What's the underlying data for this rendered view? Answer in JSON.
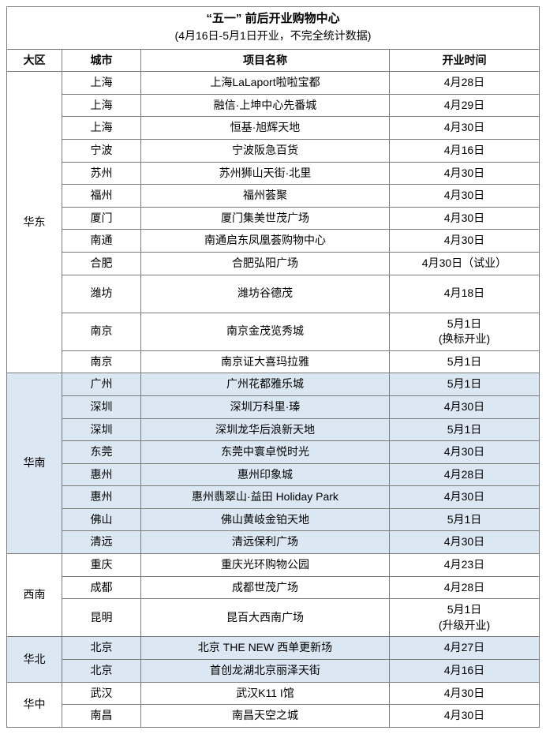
{
  "title": "“五一” 前后开业购物中心",
  "subtitle": "(4月16日-5月1日开业，不完全统计数据)",
  "headers": {
    "region": "大区",
    "city": "城市",
    "project": "项目名称",
    "date": "开业时间"
  },
  "colors": {
    "shaded_bg": "#dbe7f2",
    "border": "#7a7a7a"
  },
  "regions": [
    {
      "name": "华东",
      "shaded": false,
      "rows": [
        {
          "city": "上海",
          "project": "上海LaLaport啦啦宝都",
          "date": "4月28日"
        },
        {
          "city": "上海",
          "project": "融信·上坤中心先番城",
          "date": "4月29日"
        },
        {
          "city": "上海",
          "project": "恒基·旭辉天地",
          "date": "4月30日"
        },
        {
          "city": "宁波",
          "project": "宁波阪急百货",
          "date": "4月16日"
        },
        {
          "city": "苏州",
          "project": "苏州狮山天街·北里",
          "date": "4月30日"
        },
        {
          "city": "福州",
          "project": "福州荟聚",
          "date": "4月30日"
        },
        {
          "city": "厦门",
          "project": "厦门集美世茂广场",
          "date": "4月30日"
        },
        {
          "city": "南通",
          "project": "南通启东凤凰荟购物中心",
          "date": "4月30日"
        },
        {
          "city": "合肥",
          "project": "合肥弘阳广场",
          "date": "4月30日（试业）"
        },
        {
          "city": "潍坊",
          "project": "潍坊谷德茂",
          "date": "4月18日",
          "tall": true
        },
        {
          "city": "南京",
          "project": "南京金茂览秀城",
          "date": "5月1日\n(换标开业)",
          "tall": true
        },
        {
          "city": "南京",
          "project": "南京证大喜玛拉雅",
          "date": "5月1日"
        }
      ]
    },
    {
      "name": "华南",
      "shaded": true,
      "rows": [
        {
          "city": "广州",
          "project": "广州花都雅乐城",
          "date": "5月1日"
        },
        {
          "city": "深圳",
          "project": "深圳万科里·瑧",
          "date": "4月30日"
        },
        {
          "city": "深圳",
          "project": "深圳龙华后浪新天地",
          "date": "5月1日"
        },
        {
          "city": "东莞",
          "project": "东莞中寰卓悦时光",
          "date": "4月30日"
        },
        {
          "city": "惠州",
          "project": "惠州印象城",
          "date": "4月28日"
        },
        {
          "city": "惠州",
          "project": "惠州翡翠山·益田 Holiday Park",
          "date": "4月30日"
        },
        {
          "city": "佛山",
          "project": "佛山黄岐金铂天地",
          "date": "5月1日"
        },
        {
          "city": "清远",
          "project": "清远保利广场",
          "date": "4月30日"
        }
      ]
    },
    {
      "name": "西南",
      "shaded": false,
      "rows": [
        {
          "city": "重庆",
          "project": "重庆光环购物公园",
          "date": "4月23日"
        },
        {
          "city": "成都",
          "project": "成都世茂广场",
          "date": "4月28日"
        },
        {
          "city": "昆明",
          "project": "昆百大西南广场",
          "date": "5月1日\n(升级开业)",
          "tall": true
        }
      ]
    },
    {
      "name": "华北",
      "shaded": true,
      "rows": [
        {
          "city": "北京",
          "project": "北京 THE NEW 西单更新场",
          "date": "4月27日"
        },
        {
          "city": "北京",
          "project": "首创龙湖北京丽泽天街",
          "date": "4月16日"
        }
      ]
    },
    {
      "name": "华中",
      "shaded": false,
      "rows": [
        {
          "city": "武汉",
          "project": "武汉K11 I馆",
          "date": "4月30日"
        },
        {
          "city": "南昌",
          "project": "南昌天空之城",
          "date": "4月30日"
        }
      ]
    }
  ]
}
